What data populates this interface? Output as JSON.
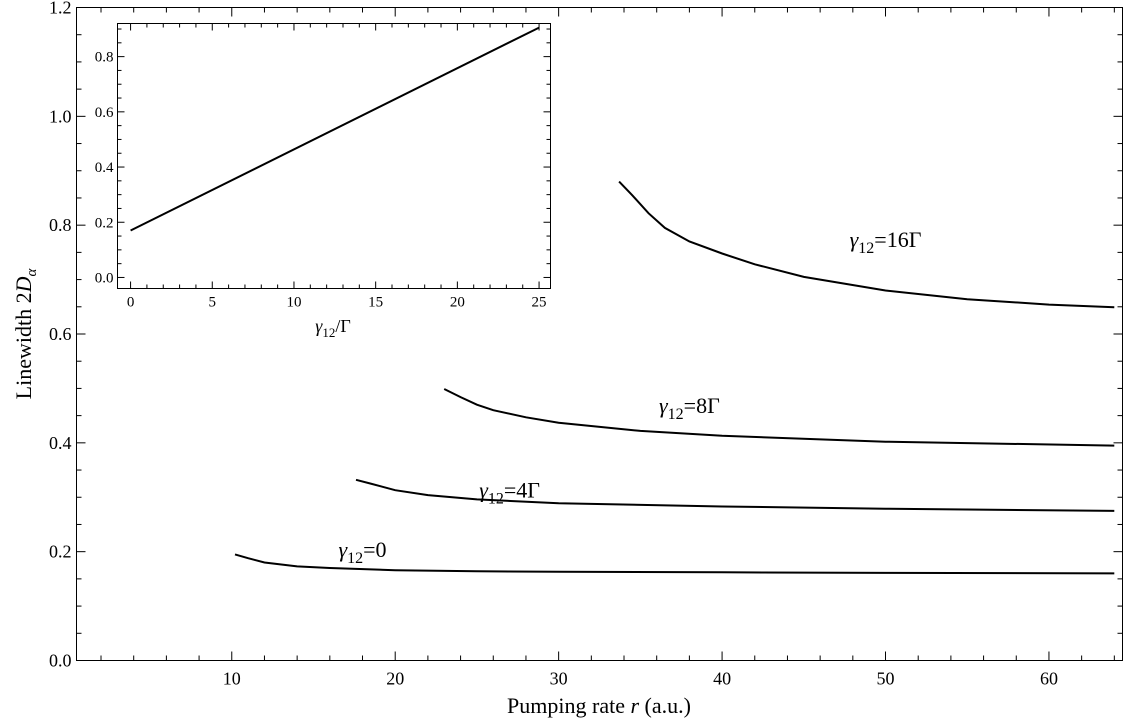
{
  "chart_data": [
    {
      "type": "line",
      "xlabel": "Pumping rate r (a.u.)",
      "xlabel_parts": [
        "Pumping rate ",
        "r",
        " (a.u.)"
      ],
      "ylabel": "Linewidth 2Dα",
      "ylabel_parts": [
        "Linewidth 2",
        "D",
        "α"
      ],
      "xlim": [
        0.5,
        64.5
      ],
      "ylim": [
        0,
        1.2
      ],
      "x_ticks": [
        10,
        20,
        30,
        40,
        50,
        60
      ],
      "y_ticks": [
        0.0,
        0.2,
        0.4,
        0.6,
        0.8,
        1.0,
        1.2
      ],
      "y_tick_labels": [
        "0.0",
        "0.2",
        "0.4",
        "0.6",
        "0.8",
        "1.0",
        "1.2"
      ],
      "grid": false,
      "series": [
        {
          "label_parts": [
            "γ",
            "12",
            "=0"
          ],
          "label_at": [
            18,
            0.19
          ],
          "x": [
            10.2,
            11,
            12,
            14,
            16,
            20,
            25,
            30,
            40,
            50,
            64
          ],
          "y": [
            0.195,
            0.188,
            0.18,
            0.173,
            0.17,
            0.166,
            0.164,
            0.163,
            0.162,
            0.161,
            0.16
          ]
        },
        {
          "label_parts": [
            "γ",
            "12",
            "=4Γ"
          ],
          "label_at": [
            27,
            0.3
          ],
          "x": [
            17.6,
            18.5,
            20,
            22,
            25,
            30,
            40,
            50,
            64
          ],
          "y": [
            0.332,
            0.325,
            0.313,
            0.304,
            0.296,
            0.289,
            0.283,
            0.279,
            0.275
          ]
        },
        {
          "label_parts": [
            "γ",
            "12",
            "=8Γ"
          ],
          "label_at": [
            38,
            0.455
          ],
          "x": [
            23,
            24,
            25,
            26,
            28,
            30,
            35,
            40,
            50,
            64
          ],
          "y": [
            0.499,
            0.484,
            0.47,
            0.46,
            0.447,
            0.437,
            0.422,
            0.413,
            0.402,
            0.395
          ]
        },
        {
          "label_parts": [
            "γ",
            "12",
            "=16Γ"
          ],
          "label_at": [
            50,
            0.76
          ],
          "x": [
            33.7,
            34.5,
            35.5,
            36.5,
            38,
            40,
            42,
            45,
            50,
            55,
            60,
            64
          ],
          "y": [
            0.88,
            0.855,
            0.822,
            0.795,
            0.77,
            0.748,
            0.728,
            0.705,
            0.68,
            0.664,
            0.654,
            0.649
          ]
        }
      ]
    },
    {
      "type": "line",
      "xlabel": "γ12/Γ",
      "xlabel_parts": [
        "γ",
        "12",
        "/Γ"
      ],
      "ylabel": "",
      "xlim": [
        -0.8,
        25.7
      ],
      "ylim": [
        -0.04,
        0.92
      ],
      "x_ticks": [
        0,
        5,
        10,
        15,
        20,
        25
      ],
      "y_ticks": [
        0.0,
        0.2,
        0.4,
        0.6,
        0.8
      ],
      "y_tick_labels": [
        "0.0",
        "0.2",
        "0.4",
        "0.6",
        "0.8"
      ],
      "grid": false,
      "series": [
        {
          "x": [
            0,
            25
          ],
          "y": [
            0.17,
            0.905
          ]
        }
      ]
    }
  ]
}
